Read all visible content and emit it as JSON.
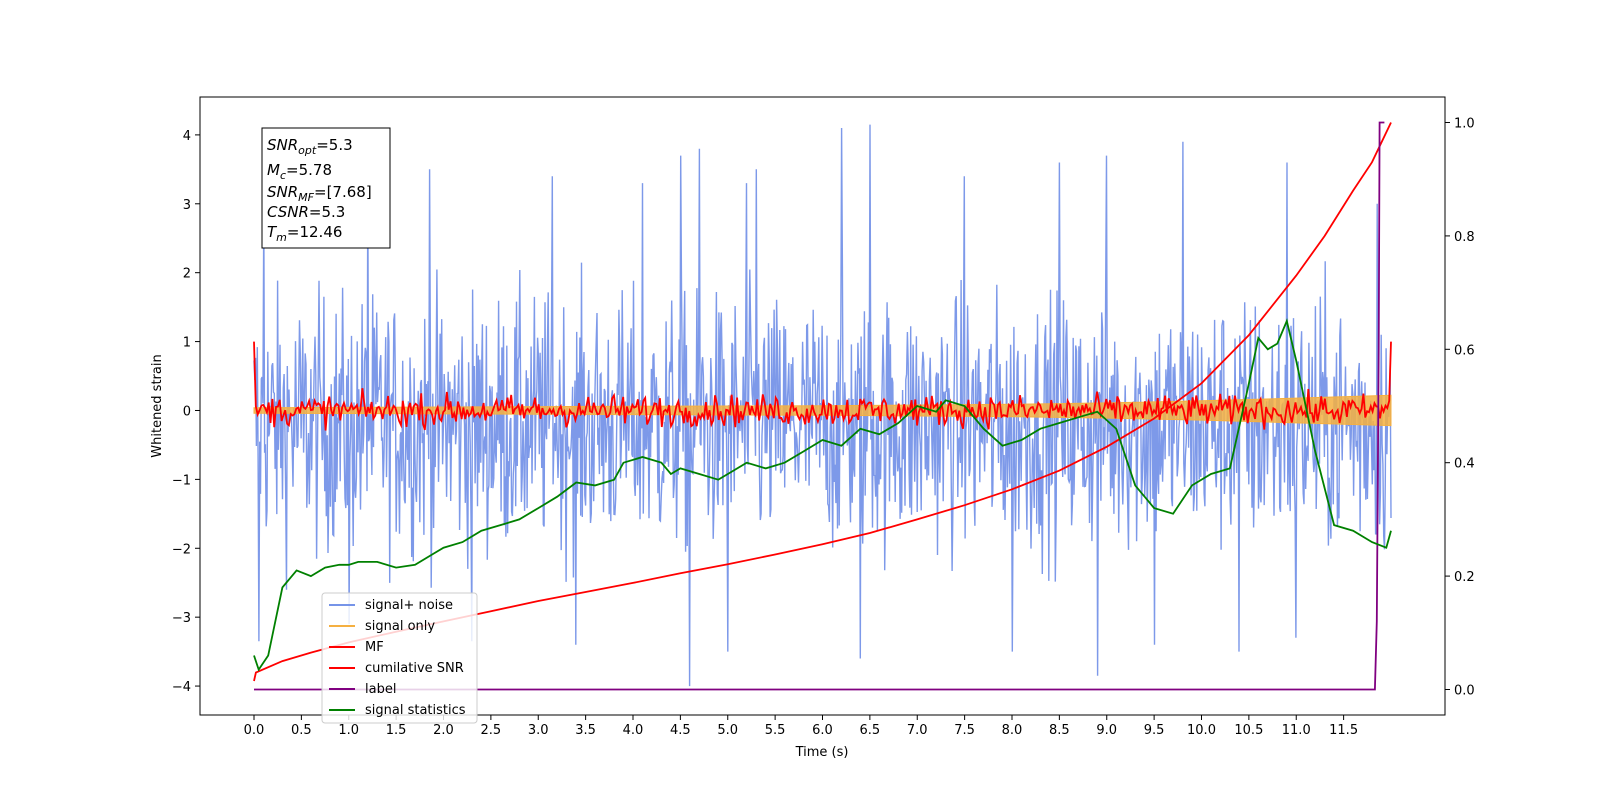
{
  "chart_data": {
    "type": "line",
    "xlabel": "Time (s)",
    "ylabel": "Whitened strain",
    "xlim": [
      -0.57,
      12.57
    ],
    "ylim": [
      -4.42,
      4.55
    ],
    "y2lim": [
      -0.045,
      1.045
    ],
    "xticks": [
      0.0,
      0.5,
      1.0,
      1.5,
      2.0,
      2.5,
      3.0,
      3.5,
      4.0,
      4.5,
      5.0,
      5.5,
      6.0,
      6.5,
      7.0,
      7.5,
      8.0,
      8.5,
      9.0,
      9.5,
      10.0,
      10.5,
      11.0,
      11.5
    ],
    "xtick_labels": [
      "0.0",
      "0.5",
      "1.0",
      "1.5",
      "2.0",
      "2.5",
      "3.0",
      "3.5",
      "4.0",
      "4.5",
      "5.0",
      "5.5",
      "6.0",
      "6.5",
      "7.0",
      "7.5",
      "8.0",
      "8.5",
      "9.0",
      "9.5",
      "10.0",
      "10.5",
      "11.0",
      "11.5"
    ],
    "yticks": [
      -4,
      -3,
      -2,
      -1,
      0,
      1,
      2,
      3,
      4
    ],
    "ytick_labels": [
      "−4",
      "−3",
      "−2",
      "−1",
      "0",
      "1",
      "2",
      "3",
      "4"
    ],
    "y2ticks": [
      0.0,
      0.2,
      0.4,
      0.6,
      0.8,
      1.0
    ],
    "y2tick_labels": [
      "0.0",
      "0.2",
      "0.4",
      "0.6",
      "0.8",
      "1.0"
    ],
    "grid": false,
    "legend_position": "lower-left",
    "noise": {
      "x_start": 0.0,
      "x_end": 12.0,
      "samples": 1400,
      "envelope_low": -1.85,
      "envelope_high": 1.45,
      "spikes": [
        [
          0.1,
          2.9
        ],
        [
          1.2,
          3.3
        ],
        [
          1.85,
          3.5
        ],
        [
          3.15,
          3.4
        ],
        [
          4.1,
          3.3
        ],
        [
          4.5,
          3.7
        ],
        [
          4.7,
          3.8
        ],
        [
          5.2,
          3.3
        ],
        [
          5.3,
          3.5
        ],
        [
          6.2,
          4.1
        ],
        [
          6.5,
          4.15
        ],
        [
          7.5,
          3.4
        ],
        [
          8.5,
          3.6
        ],
        [
          9.0,
          3.7
        ],
        [
          9.8,
          3.9
        ],
        [
          10.9,
          3.6
        ],
        [
          11.85,
          3.0
        ],
        [
          0.05,
          -3.35
        ],
        [
          1.0,
          -3.1
        ],
        [
          2.3,
          -3.35
        ],
        [
          3.4,
          -3.4
        ],
        [
          4.6,
          -4.0
        ],
        [
          5.0,
          -3.5
        ],
        [
          6.4,
          -3.6
        ],
        [
          8.0,
          -3.5
        ],
        [
          8.9,
          -3.85
        ],
        [
          9.5,
          -3.4
        ],
        [
          10.4,
          -3.5
        ],
        [
          11.0,
          -3.3
        ]
      ]
    },
    "signal_band": [
      [
        0.0,
        0.04
      ],
      [
        2.0,
        0.05
      ],
      [
        4.0,
        0.06
      ],
      [
        6.0,
        0.07
      ],
      [
        8.0,
        0.09
      ],
      [
        9.0,
        0.11
      ],
      [
        10.0,
        0.14
      ],
      [
        11.0,
        0.18
      ],
      [
        12.0,
        0.22
      ]
    ],
    "mf_noise": {
      "x_start": 0.0,
      "x_end": 12.0,
      "samples": 620,
      "amplitude": 0.11,
      "start_value": 1.0,
      "end_value": 1.0
    },
    "series": [
      {
        "name": "signal+ noise",
        "color": "#7694E8",
        "axis": "left"
      },
      {
        "name": "signal only",
        "color": "#F5B041",
        "axis": "left"
      },
      {
        "name": "MF",
        "color": "#FF0000",
        "axis": "left"
      },
      {
        "name": "cumilative SNR",
        "color": "#FF0000",
        "axis": "right",
        "x": [
          0.0,
          0.02,
          0.3,
          0.6,
          1.0,
          1.5,
          2.0,
          2.5,
          3.0,
          3.5,
          4.0,
          4.5,
          5.0,
          5.5,
          6.0,
          6.5,
          7.0,
          7.5,
          8.0,
          8.5,
          9.0,
          9.5,
          10.0,
          10.5,
          11.0,
          11.3,
          11.6,
          11.8,
          12.0
        ],
        "y": [
          0.015,
          0.03,
          0.05,
          0.065,
          0.083,
          0.102,
          0.12,
          0.138,
          0.156,
          0.172,
          0.188,
          0.205,
          0.221,
          0.238,
          0.256,
          0.276,
          0.3,
          0.325,
          0.353,
          0.386,
          0.428,
          0.478,
          0.54,
          0.625,
          0.73,
          0.8,
          0.88,
          0.93,
          1.0
        ]
      },
      {
        "name": "label",
        "color": "#800080",
        "axis": "right",
        "x": [
          0.0,
          11.83,
          11.85,
          11.87,
          11.88,
          11.93
        ],
        "y": [
          0.0,
          0.0,
          0.12,
          0.6,
          1.0,
          1.0
        ]
      },
      {
        "name": "signal statistics",
        "color": "#008000",
        "axis": "right",
        "x": [
          0.0,
          0.05,
          0.15,
          0.3,
          0.45,
          0.6,
          0.75,
          0.9,
          1.0,
          1.1,
          1.3,
          1.5,
          1.7,
          1.9,
          2.0,
          2.2,
          2.4,
          2.6,
          2.8,
          3.0,
          3.2,
          3.4,
          3.6,
          3.8,
          3.9,
          4.1,
          4.3,
          4.4,
          4.5,
          4.7,
          4.9,
          5.0,
          5.2,
          5.4,
          5.6,
          5.8,
          6.0,
          6.2,
          6.4,
          6.6,
          6.8,
          7.0,
          7.2,
          7.3,
          7.5,
          7.7,
          7.9,
          8.1,
          8.3,
          8.5,
          8.7,
          8.9,
          9.1,
          9.3,
          9.5,
          9.7,
          9.9,
          10.1,
          10.3,
          10.5,
          10.6,
          10.7,
          10.8,
          10.9,
          11.0,
          11.2,
          11.4,
          11.6,
          11.8,
          11.95,
          12.0
        ],
        "y": [
          0.06,
          0.035,
          0.06,
          0.18,
          0.21,
          0.2,
          0.215,
          0.22,
          0.22,
          0.225,
          0.225,
          0.215,
          0.22,
          0.24,
          0.25,
          0.26,
          0.28,
          0.29,
          0.3,
          0.32,
          0.34,
          0.365,
          0.36,
          0.37,
          0.4,
          0.41,
          0.4,
          0.38,
          0.39,
          0.38,
          0.37,
          0.38,
          0.4,
          0.39,
          0.4,
          0.42,
          0.44,
          0.43,
          0.46,
          0.45,
          0.47,
          0.5,
          0.49,
          0.51,
          0.5,
          0.46,
          0.43,
          0.44,
          0.46,
          0.47,
          0.48,
          0.49,
          0.46,
          0.36,
          0.32,
          0.31,
          0.36,
          0.38,
          0.39,
          0.54,
          0.62,
          0.6,
          0.61,
          0.65,
          0.58,
          0.42,
          0.29,
          0.28,
          0.26,
          0.25,
          0.28
        ]
      }
    ],
    "info_box": {
      "lines": [
        {
          "symbol": "SNR",
          "sub": "opt",
          "value": "=5.3"
        },
        {
          "symbol": "M",
          "sub": "c",
          "value": "=5.78"
        },
        {
          "symbol": "SNR",
          "sub": "MF",
          "value": "=[7.68]"
        },
        {
          "symbol": "CSNR",
          "sub": "",
          "value": "=5.3"
        },
        {
          "symbol": "T",
          "sub": "m",
          "value": "=12.46"
        }
      ]
    },
    "legend": [
      {
        "label": "signal+ noise",
        "color": "#7694E8"
      },
      {
        "label": "signal only",
        "color": "#F5B041"
      },
      {
        "label": "MF",
        "color": "#FF0000"
      },
      {
        "label": "cumilative SNR",
        "color": "#FF0000"
      },
      {
        "label": "label",
        "color": "#800080"
      },
      {
        "label": "signal statistics",
        "color": "#008000"
      }
    ]
  }
}
